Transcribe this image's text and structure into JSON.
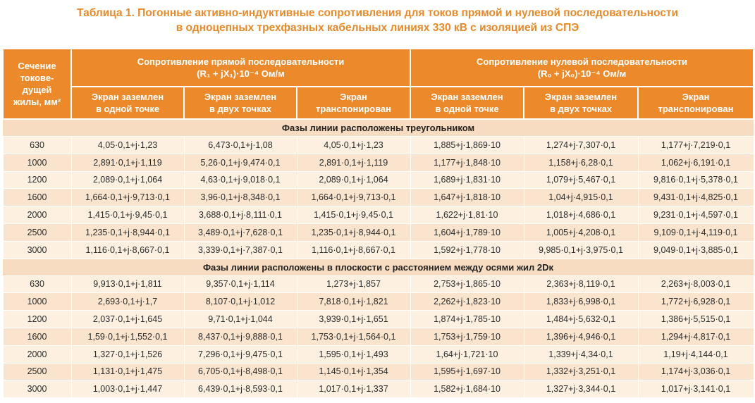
{
  "title": {
    "line1": "Таблица 1. Погонные активно-индуктивные сопротивления для токов прямой и нулевой последовательности",
    "line2": "в одноцепных трехфазных кабельных линиях 330 кВ с изоляцией из СПЭ"
  },
  "header": {
    "section_col": [
      "Сечение",
      "токове-",
      "дущей",
      "жилы, мм²"
    ],
    "direct": {
      "title": "Сопротивление прямой последовательности",
      "formula": "(R₁ + jX₁)·10⁻⁴ Ом/м"
    },
    "zero": {
      "title": "Сопротивление нулевой последовательности",
      "formula": "(R₀ + jX₀)·10⁻⁴ Ом/м"
    },
    "sub": [
      [
        "Экран заземлен",
        "в одной точке"
      ],
      [
        "Экран заземлен",
        "в двух точках"
      ],
      [
        "Экран",
        "транспонирован"
      ],
      [
        "Экран заземлен",
        "в одной точке"
      ],
      [
        "Экран заземлен",
        "в двух точках"
      ],
      [
        "Экран",
        "транспонирован"
      ]
    ]
  },
  "sections": [
    {
      "title": "Фазы линии расположены треугольником",
      "rows": [
        [
          "630",
          "4,05·0,1+j·1,23",
          "6,473·0,1+j·1,08",
          "4,05·0,1+j·1,23",
          "1,885+j·1,869·10",
          "1,274+j·7,307·0,1",
          "1,177+j·7,219·0,1"
        ],
        [
          "1000",
          "2,891·0,1+j·1,119",
          "5,26·0,1+j·9,474·0,1",
          "2,891·0,1+j·1,119",
          "1,177+j·1,848·10",
          "1,158+j·6,28·0,1",
          "1,062+j·6,191·0,1"
        ],
        [
          "1200",
          "2,089·0,1+j·1,064",
          "4,63·0,1+j·9,018·0,1",
          "2,089·0,1+j·1,064",
          "1,689+j·1,831·10",
          "1,079+j·5,467·0,1",
          "9,816·0,1+j·5,378·0,1"
        ],
        [
          "1600",
          "1,664·0,1+j·9,713·0,1",
          "3,96·0,1+j·8,348·0,1",
          "1,664·0,1+j·9,713·0,1",
          "1,647+j·1,818·10",
          "1,04+j·4,915·0,1",
          "9,431·0,1+j·4,825·0,1"
        ],
        [
          "2000",
          "1,415·0,1+j·9,45·0,1",
          "3,688·0,1+j·8,111·0,1",
          "1,415·0,1+j·9,45·0,1",
          "1,622+j·1,81·10",
          "1,018+j·4,686·0,1",
          "9,231·0,1+j·4,597·0,1"
        ],
        [
          "2500",
          "1,235·0,1+j·8,944·0,1",
          "3,489·0,1+j·7,628·0,1",
          "1,235·0,1+j·8,944·0,1",
          "1,604+j·1,789·10",
          "1,005+j·4,208·0,1",
          "9,109·0,1+j·4,119·0,1"
        ],
        [
          "3000",
          "1,116·0,1+j·8,667·0,1",
          "3,339·0,1+j·7,387·0,1",
          "1,116·0,1+j·8,667·0,1",
          "1,592+j·1,778·10",
          "9,985·0,1+j·3,975·0,1",
          "9,049·0,1+j·3,885·0,1"
        ]
      ]
    },
    {
      "title": "Фазы линии расположены в плоскости с расстоянием между осями жил 2Dк",
      "rows": [
        [
          "630",
          "9,913·0,1+j·1,811",
          "9,357·0,1+j·1,114",
          "1,273+j·1,857",
          "2,753+j·1,865·10",
          "2,363+j·8,119·0,1",
          "2,263+j·8,003·0,1"
        ],
        [
          "1000",
          "2,693·0,1+j·1,7",
          "8,107·0,1+j·1,012",
          "7,818·0,1+j·1,821",
          "2,262+j·1,823·10",
          "1,833+j·6,998·0,1",
          "1,772+j·6,928·0,1"
        ],
        [
          "1200",
          "2,037·0,1+j·1,645",
          "9,71·0,1+j·1,044",
          "3,939·0,1+j·1,651",
          "1,874+j·1,785·10",
          "1,484+j·5,632·0,1",
          "1,386+j·5,515·0,1"
        ],
        [
          "1600",
          "1,59·0,1+j·1,552·0,1",
          "8,437·0,1+j·9,888·0,1",
          "1,753·0,1+j·1,564·0,1",
          "1,753+j·1,759·10",
          "1,396+j·4,946·0,1",
          "1,294+j·4,817·0,1"
        ],
        [
          "2000",
          "1,327·0,1+j·1,526",
          "7,296·0,1+j·9,475·0,1",
          "1,595·0,1+j·1,493",
          "1,64+j·1,721·10",
          "1,339+j·4,34·0,1",
          "1,19+j·4,144·0,1"
        ],
        [
          "2500",
          "1,131·0,1+j·1,475",
          "6,705·0,1+j·8,498·0,1",
          "1,145·0,1+j·1,354",
          "1,595+j·1,697·10",
          "1,332+j·3,251·0,1",
          "1,174+j·3,036·0,1"
        ],
        [
          "3000",
          "1,003·0,1+j·1,447",
          "6,439·0,1+j·8,593·0,1",
          "1,017·0,1+j·1,337",
          "1,582+j·1,684·10",
          "1,327+j·3,344·0,1",
          "1,017+j·3,141·0,1"
        ]
      ]
    }
  ],
  "colors": {
    "accent": "#ec8a2b",
    "title": "#e8892a",
    "section_bg": "#f8dcc1",
    "row_a": "#fdf0e1",
    "row_b": "#fbe4cd"
  }
}
